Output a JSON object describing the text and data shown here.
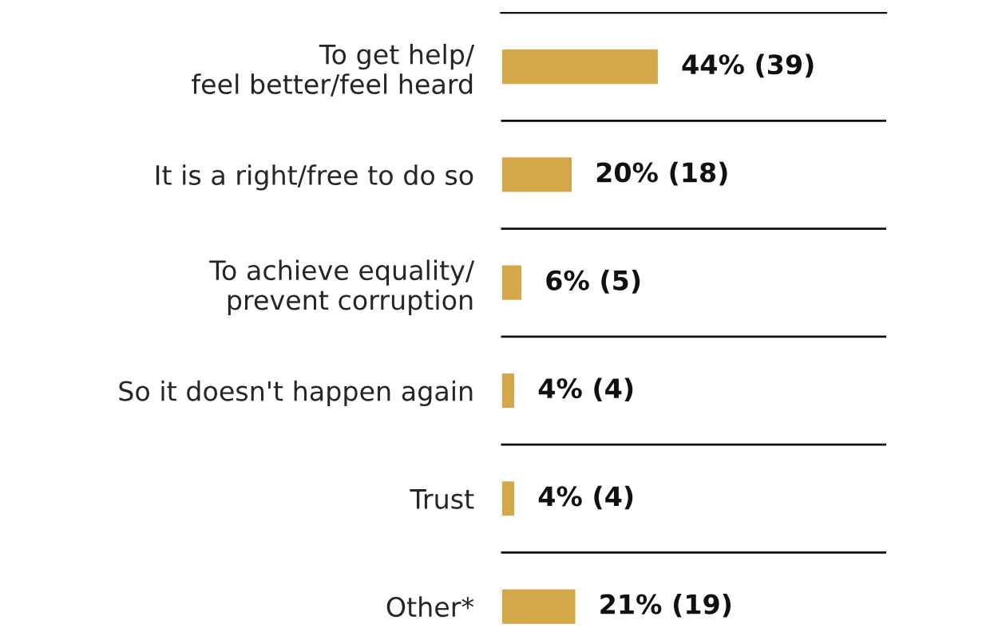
{
  "chart_data": {
    "type": "bar",
    "orientation": "horizontal",
    "categories": [
      "To get help/\nfeel better/feel heard",
      "It is a right/free to do so",
      "To achieve equality/\nprevent corruption",
      "So it doesn't happen again",
      "Trust",
      "Other*"
    ],
    "values": [
      44,
      20,
      6,
      4,
      4,
      21
    ],
    "value_labels": [
      "44% (39)",
      "20% (18)",
      "6% (5)",
      "4% (4)",
      "4% (4)",
      "21% (19)"
    ],
    "color": "#d4a84a",
    "grid": false,
    "legend": false
  }
}
